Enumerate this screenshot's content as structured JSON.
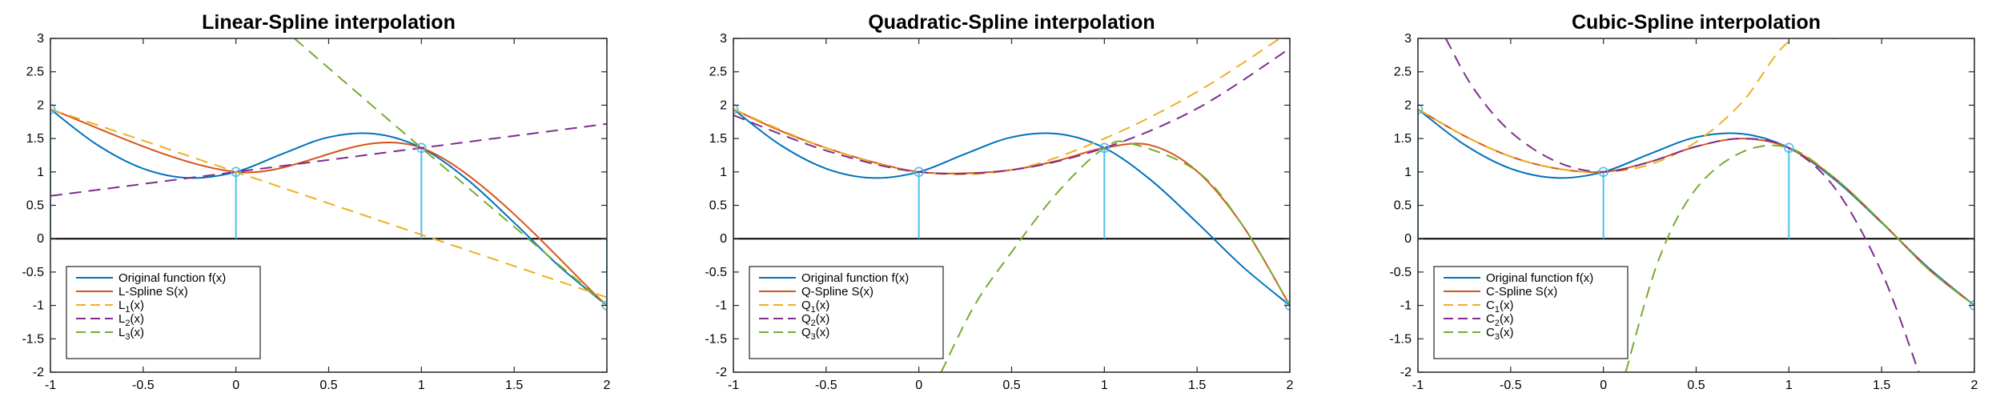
{
  "chart_data": [
    {
      "type": "line",
      "title": "Linear-Spline interpolation",
      "xlabel": "",
      "ylabel": "",
      "xlim": [
        -1,
        2
      ],
      "ylim": [
        -2,
        3
      ],
      "xticks": [
        -1,
        -0.5,
        0,
        0.5,
        1,
        1.5,
        2
      ],
      "xtick_labels": [
        "-1",
        "-0.5",
        "0",
        "0.5",
        "1",
        "1.5",
        "2"
      ],
      "yticks": [
        -2,
        -1.5,
        -1,
        -0.5,
        0,
        0.5,
        1,
        1.5,
        2,
        2.5,
        3
      ],
      "ytick_labels": [
        "-2",
        "-1.5",
        "-1",
        "-0.5",
        "0",
        "0.5",
        "1",
        "1.5",
        "2",
        "2.5",
        "3"
      ],
      "grid": false,
      "legend_position": "bottom-left",
      "nodes": {
        "x": [
          -1,
          0,
          1,
          2
        ],
        "y": [
          1.94,
          1.0,
          1.36,
          -1.0
        ]
      },
      "series": [
        {
          "name": "Original function f(x)",
          "color": "#0072bd",
          "dash": false,
          "x": [
            -1,
            -0.75,
            -0.5,
            -0.25,
            0,
            0.25,
            0.5,
            0.75,
            1,
            1.25,
            1.5,
            1.75,
            2
          ],
          "y": [
            1.94,
            1.41,
            1.05,
            0.91,
            1.0,
            1.27,
            1.52,
            1.57,
            1.36,
            0.88,
            0.24,
            -0.43,
            -1.0
          ]
        },
        {
          "name": "L-Spline S(x)",
          "color": "#d95319",
          "dash": false,
          "x": [
            -1,
            0,
            1,
            2
          ],
          "y": [
            1.94,
            1.0,
            1.36,
            -1.0
          ]
        },
        {
          "name": "L_1(x)",
          "label_base": "L",
          "label_sub": "1",
          "color": "#edb120",
          "dash": true,
          "x": [
            -1,
            0,
            1,
            2
          ],
          "y": [
            1.94,
            1.0,
            0.06,
            -0.88
          ]
        },
        {
          "name": "L_2(x)",
          "label_base": "L",
          "label_sub": "2",
          "color": "#7e2f8e",
          "dash": true,
          "x": [
            -1,
            0,
            1,
            2
          ],
          "y": [
            0.64,
            1.0,
            1.36,
            1.72
          ]
        },
        {
          "name": "L_3(x)",
          "label_base": "L",
          "label_sub": "3",
          "color": "#77ac30",
          "dash": true,
          "x": [
            0.315,
            1,
            2
          ],
          "y": [
            3.0,
            1.36,
            -1.0
          ]
        }
      ]
    },
    {
      "type": "line",
      "title": "Quadratic-Spline interpolation",
      "xlabel": "",
      "ylabel": "",
      "xlim": [
        -1,
        2
      ],
      "ylim": [
        -2,
        3
      ],
      "xticks": [
        -1,
        -0.5,
        0,
        0.5,
        1,
        1.5,
        2
      ],
      "xtick_labels": [
        "-1",
        "-0.5",
        "0",
        "0.5",
        "1",
        "1.5",
        "2"
      ],
      "yticks": [
        -2,
        -1.5,
        -1,
        -0.5,
        0,
        0.5,
        1,
        1.5,
        2,
        2.5,
        3
      ],
      "ytick_labels": [
        "-2",
        "-1.5",
        "-1",
        "-0.5",
        "0",
        "0.5",
        "1",
        "1.5",
        "2",
        "2.5",
        "3"
      ],
      "grid": false,
      "legend_position": "bottom-left",
      "nodes": {
        "x": [
          -1,
          0,
          1,
          2
        ],
        "y": [
          1.94,
          1.0,
          1.36,
          -1.0
        ]
      },
      "series": [
        {
          "name": "Original function f(x)",
          "color": "#0072bd",
          "dash": false,
          "x": [
            -1,
            -0.75,
            -0.5,
            -0.25,
            0,
            0.25,
            0.5,
            0.75,
            1,
            1.25,
            1.5,
            1.75,
            2
          ],
          "y": [
            1.94,
            1.41,
            1.05,
            0.91,
            1.0,
            1.27,
            1.52,
            1.57,
            1.36,
            0.88,
            0.24,
            -0.43,
            -1.0
          ]
        },
        {
          "name": "Q-Spline S(x)",
          "color": "#d95319",
          "dash": false,
          "x": [
            -1,
            -0.75,
            -0.5,
            -0.25,
            0,
            0.25,
            0.5,
            0.75,
            1,
            1.25,
            1.5,
            1.75,
            2
          ],
          "y": [
            1.94,
            1.62,
            1.36,
            1.15,
            1.0,
            0.98,
            1.03,
            1.17,
            1.36,
            1.4,
            1.01,
            0.18,
            -1.0
          ]
        },
        {
          "name": "Q_1(x)",
          "label_base": "Q",
          "label_sub": "1",
          "color": "#edb120",
          "dash": true,
          "x": [
            -1,
            -0.5,
            0,
            0.5,
            1,
            1.5,
            2
          ],
          "y": [
            1.94,
            1.36,
            1.0,
            1.03,
            1.5,
            2.2,
            3.1
          ]
        },
        {
          "name": "Q_2(x)",
          "label_base": "Q",
          "label_sub": "2",
          "color": "#7e2f8e",
          "dash": true,
          "x": [
            -1,
            -0.5,
            0,
            0.5,
            1,
            1.5,
            2
          ],
          "y": [
            1.85,
            1.32,
            1.0,
            1.03,
            1.36,
            1.95,
            2.85
          ]
        },
        {
          "name": "Q_3(x)",
          "label_base": "Q",
          "label_sub": "3",
          "color": "#77ac30",
          "dash": true,
          "x": [
            0.12,
            0.3,
            0.5,
            0.75,
            1,
            1.15,
            1.5,
            1.75,
            2
          ],
          "y": [
            -2.0,
            -1.0,
            -0.2,
            0.7,
            1.36,
            1.42,
            1.01,
            0.18,
            -1.0
          ]
        }
      ]
    },
    {
      "type": "line",
      "title": "Cubic-Spline interpolation",
      "xlabel": "",
      "ylabel": "",
      "xlim": [
        -1,
        2
      ],
      "ylim": [
        -2,
        3
      ],
      "xticks": [
        -1,
        -0.5,
        0,
        0.5,
        1,
        1.5,
        2
      ],
      "xtick_labels": [
        "-1",
        "-0.5",
        "0",
        "0.5",
        "1",
        "1.5",
        "2"
      ],
      "yticks": [
        -2,
        -1.5,
        -1,
        -0.5,
        0,
        0.5,
        1,
        1.5,
        2,
        2.5,
        3
      ],
      "ytick_labels": [
        "-2",
        "-1.5",
        "-1",
        "-0.5",
        "0",
        "0.5",
        "1",
        "1.5",
        "2",
        "2.5",
        "3"
      ],
      "grid": false,
      "legend_position": "bottom-left",
      "nodes": {
        "x": [
          -1,
          0,
          1,
          2
        ],
        "y": [
          1.94,
          1.0,
          1.36,
          -1.0
        ]
      },
      "series": [
        {
          "name": "Original function f(x)",
          "color": "#0072bd",
          "dash": false,
          "x": [
            -1,
            -0.75,
            -0.5,
            -0.25,
            0,
            0.25,
            0.5,
            0.75,
            1,
            1.25,
            1.5,
            1.75,
            2
          ],
          "y": [
            1.94,
            1.41,
            1.05,
            0.91,
            1.0,
            1.27,
            1.52,
            1.57,
            1.36,
            0.88,
            0.24,
            -0.43,
            -1.0
          ]
        },
        {
          "name": "C-Spline S(x)",
          "color": "#d95319",
          "dash": false,
          "x": [
            -1,
            -0.75,
            -0.5,
            -0.25,
            0,
            0.25,
            0.5,
            0.75,
            1,
            1.25,
            1.5,
            1.75,
            2
          ],
          "y": [
            1.94,
            1.54,
            1.23,
            1.05,
            1.0,
            1.15,
            1.38,
            1.5,
            1.36,
            0.9,
            0.25,
            -0.45,
            -1.0
          ]
        },
        {
          "name": "C_1(x)",
          "label_base": "C",
          "label_sub": "1",
          "color": "#edb120",
          "dash": true,
          "x": [
            -1,
            -0.75,
            -0.5,
            -0.25,
            0,
            0.25,
            0.5,
            0.75,
            1,
            1.25
          ],
          "y": [
            1.94,
            1.54,
            1.23,
            1.05,
            1.0,
            1.11,
            1.45,
            2.05,
            2.95,
            3.0
          ]
        },
        {
          "name": "C_2(x)",
          "label_base": "C",
          "label_sub": "2",
          "color": "#7e2f8e",
          "dash": true,
          "x": [
            -0.85,
            -0.7,
            -0.5,
            -0.25,
            0,
            0.25,
            0.5,
            0.75,
            1,
            1.25,
            1.5,
            1.7
          ],
          "y": [
            3.0,
            2.25,
            1.6,
            1.15,
            1.0,
            1.15,
            1.38,
            1.5,
            1.36,
            0.75,
            -0.5,
            -2.0
          ]
        },
        {
          "name": "C_3(x)",
          "label_base": "C",
          "label_sub": "3",
          "color": "#77ac30",
          "dash": true,
          "x": [
            0.12,
            0.3,
            0.5,
            0.75,
            1,
            1.25,
            1.5,
            1.75,
            2
          ],
          "y": [
            -2.0,
            -0.3,
            0.75,
            1.3,
            1.36,
            0.9,
            0.25,
            -0.45,
            -1.0
          ]
        }
      ]
    }
  ]
}
